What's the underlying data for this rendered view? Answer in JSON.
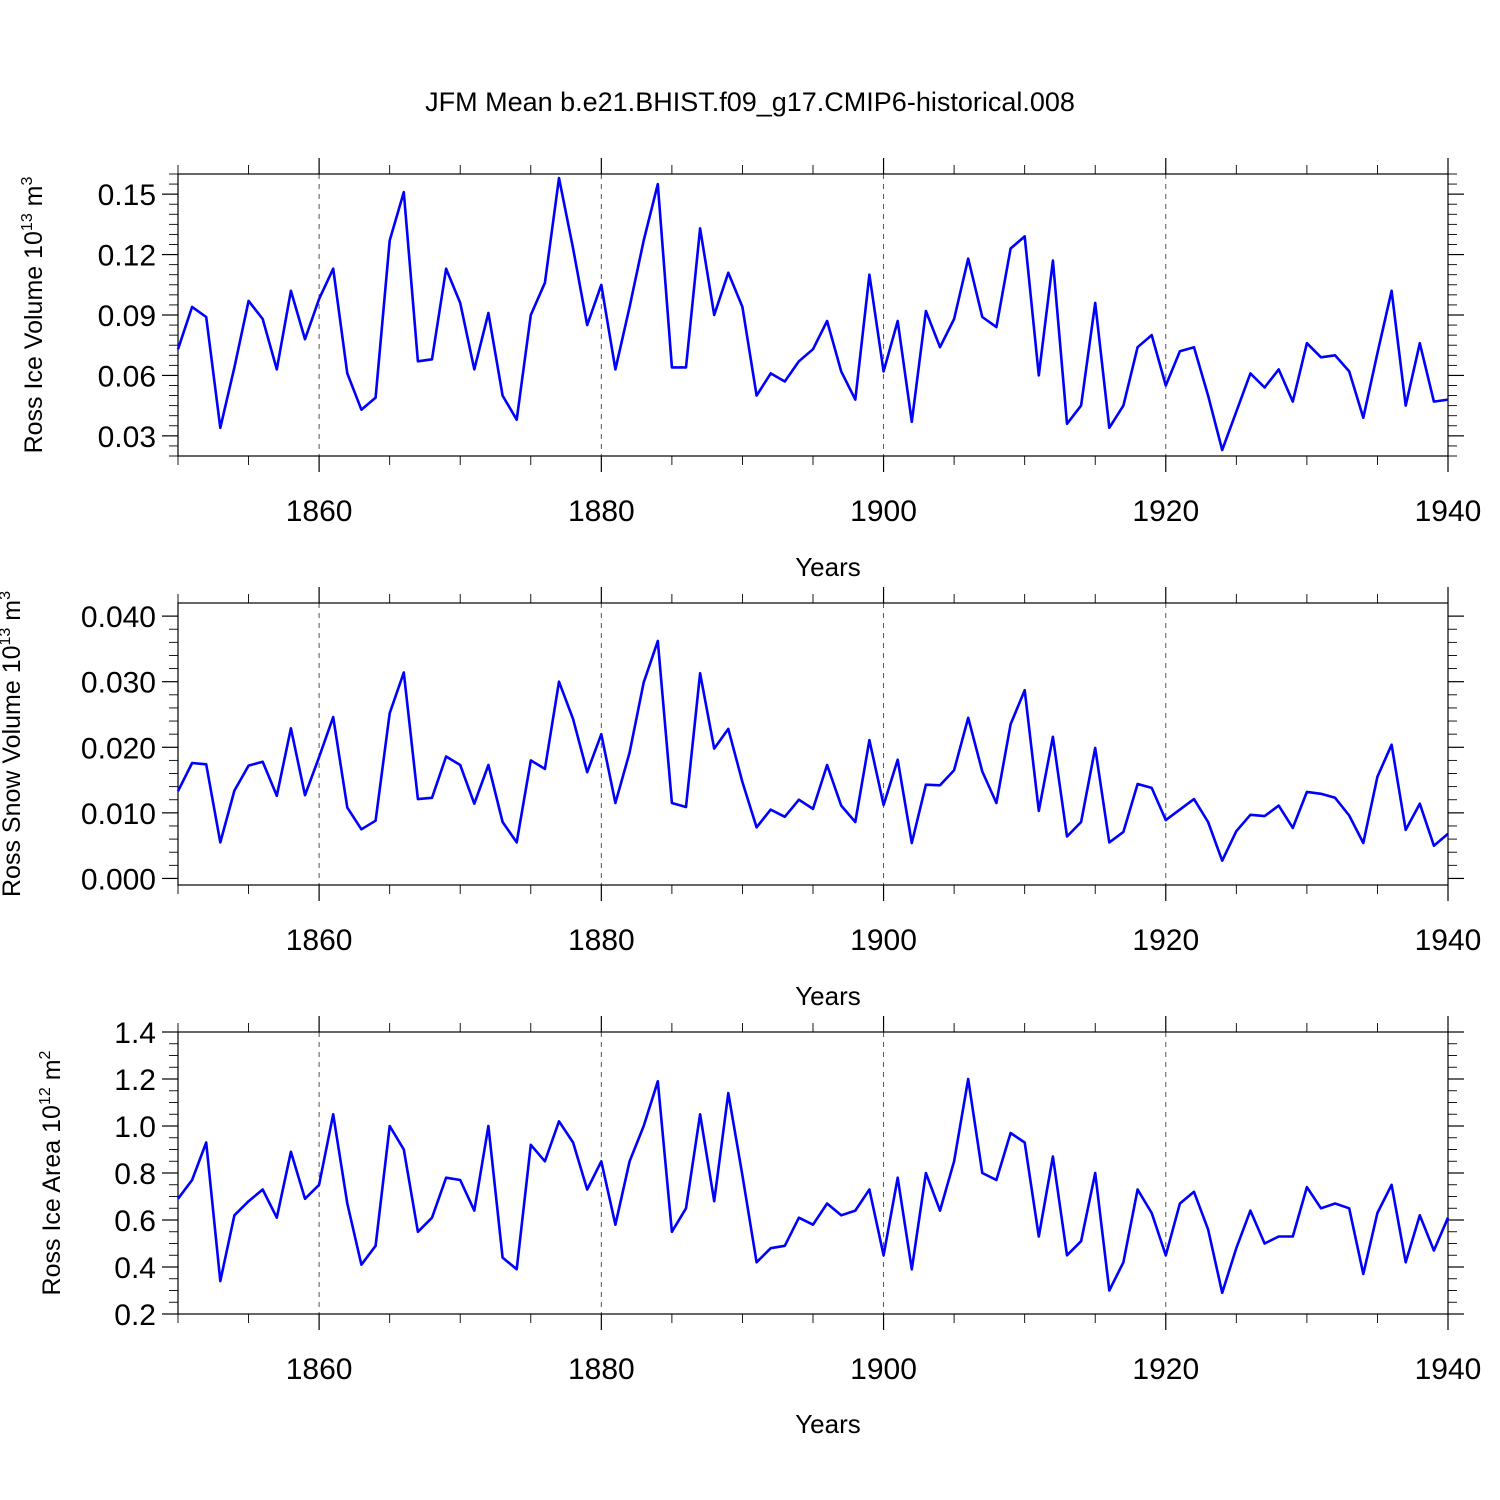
{
  "chart_data": {
    "title": "JFM Mean b.e21.BHIST.f09_g17.CMIP6-historical.008",
    "line_color": "#0000ff",
    "panels": [
      {
        "type": "line",
        "ylabel_main": "Ross Ice Volume 10",
        "ylabel_sup1": "13",
        "ylabel_mid": " m",
        "ylabel_sup2": "3",
        "xlabel": "Years",
        "xlim": [
          1850,
          1940
        ],
        "ylim": [
          0.02,
          0.16
        ],
        "x_ticks": [
          1860,
          1880,
          1900,
          1920,
          1940
        ],
        "x_tick_labels": [
          "1860",
          "1880",
          "1900",
          "1920",
          "1940"
        ],
        "x_minor_ticks": [
          1850,
          1855,
          1865,
          1870,
          1875,
          1885,
          1890,
          1895,
          1905,
          1910,
          1915,
          1925,
          1930,
          1935
        ],
        "y_ticks": [
          0.03,
          0.06,
          0.09,
          0.12,
          0.15
        ],
        "y_tick_labels": [
          "0.03",
          "0.06",
          "0.09",
          "0.12",
          "0.15"
        ],
        "y_minor_ticks": [
          0.02,
          0.025,
          0.035,
          0.04,
          0.045,
          0.05,
          0.055,
          0.065,
          0.07,
          0.075,
          0.08,
          0.085,
          0.095,
          0.1,
          0.105,
          0.11,
          0.115,
          0.125,
          0.13,
          0.135,
          0.14,
          0.145,
          0.155,
          0.16
        ],
        "grid_x": [
          1860,
          1880,
          1900,
          1920
        ],
        "series": [
          {
            "name": "Ross Ice Volume",
            "x_start": 1850,
            "values": [
              0.073,
              0.094,
              0.089,
              0.034,
              0.064,
              0.097,
              0.088,
              0.063,
              0.102,
              0.078,
              0.098,
              0.113,
              0.061,
              0.043,
              0.049,
              0.127,
              0.151,
              0.067,
              0.068,
              0.113,
              0.096,
              0.063,
              0.091,
              0.05,
              0.038,
              0.09,
              0.106,
              0.158,
              0.123,
              0.085,
              0.105,
              0.063,
              0.094,
              0.127,
              0.155,
              0.064,
              0.064,
              0.133,
              0.09,
              0.111,
              0.094,
              0.05,
              0.061,
              0.057,
              0.067,
              0.073,
              0.087,
              0.062,
              0.048,
              0.11,
              0.062,
              0.087,
              0.037,
              0.092,
              0.074,
              0.088,
              0.118,
              0.089,
              0.084,
              0.123,
              0.129,
              0.06,
              0.117,
              0.036,
              0.045,
              0.096,
              0.034,
              0.045,
              0.074,
              0.08,
              0.055,
              0.072,
              0.074,
              0.05,
              0.023,
              0.042,
              0.061,
              0.054,
              0.063,
              0.047,
              0.076,
              0.069,
              0.07,
              0.062,
              0.039,
              0.071,
              0.102,
              0.045,
              0.076,
              0.047,
              0.048
            ]
          }
        ]
      },
      {
        "type": "line",
        "ylabel_main": "Ross Snow Volume 10",
        "ylabel_sup1": "13",
        "ylabel_mid": " m",
        "ylabel_sup2": "3",
        "xlabel": "Years",
        "xlim": [
          1850,
          1940
        ],
        "ylim": [
          -0.001,
          0.042
        ],
        "x_ticks": [
          1860,
          1880,
          1900,
          1920,
          1940
        ],
        "x_tick_labels": [
          "1860",
          "1880",
          "1900",
          "1920",
          "1940"
        ],
        "x_minor_ticks": [
          1850,
          1855,
          1865,
          1870,
          1875,
          1885,
          1890,
          1895,
          1905,
          1910,
          1915,
          1925,
          1930,
          1935
        ],
        "y_ticks": [
          0.0,
          0.01,
          0.02,
          0.03,
          0.04
        ],
        "y_tick_labels": [
          "0.000",
          "0.010",
          "0.020",
          "0.030",
          "0.040"
        ],
        "y_minor_ticks": [
          0.002,
          0.004,
          0.006,
          0.008,
          0.012,
          0.014,
          0.016,
          0.018,
          0.022,
          0.024,
          0.026,
          0.028,
          0.032,
          0.034,
          0.036,
          0.038
        ],
        "grid_x": [
          1860,
          1880,
          1900,
          1920
        ],
        "series": [
          {
            "name": "Ross Snow Volume",
            "x_start": 1850,
            "values": [
              0.0133,
              0.0176,
              0.0174,
              0.0055,
              0.0134,
              0.0172,
              0.0178,
              0.0126,
              0.0229,
              0.0127,
              0.0185,
              0.0246,
              0.0108,
              0.0075,
              0.0088,
              0.0252,
              0.0314,
              0.0121,
              0.0123,
              0.0186,
              0.0173,
              0.0114,
              0.0173,
              0.0086,
              0.0055,
              0.018,
              0.0167,
              0.03,
              0.0243,
              0.0162,
              0.022,
              0.0115,
              0.0192,
              0.0299,
              0.0362,
              0.0115,
              0.0109,
              0.0313,
              0.0198,
              0.0228,
              0.0147,
              0.0078,
              0.0105,
              0.0094,
              0.012,
              0.0106,
              0.0173,
              0.0111,
              0.0086,
              0.0211,
              0.0112,
              0.0181,
              0.0054,
              0.0143,
              0.0142,
              0.0165,
              0.0245,
              0.0163,
              0.0115,
              0.0235,
              0.0287,
              0.0103,
              0.0216,
              0.0064,
              0.0086,
              0.0199,
              0.0055,
              0.0071,
              0.0144,
              0.0138,
              0.0089,
              0.0105,
              0.0121,
              0.0086,
              0.0027,
              0.0072,
              0.0097,
              0.0095,
              0.0111,
              0.0077,
              0.0132,
              0.0129,
              0.0123,
              0.0096,
              0.0054,
              0.0155,
              0.0204,
              0.0074,
              0.0114,
              0.005,
              0.0068
            ]
          }
        ]
      },
      {
        "type": "line",
        "ylabel_main": "Ross Ice Area 10",
        "ylabel_sup1": "12",
        "ylabel_mid": " m",
        "ylabel_sup2": "2",
        "xlabel": "Years",
        "xlim": [
          1850,
          1940
        ],
        "ylim": [
          0.2,
          1.4
        ],
        "x_ticks": [
          1860,
          1880,
          1900,
          1920,
          1940
        ],
        "x_tick_labels": [
          "1860",
          "1880",
          "1900",
          "1920",
          "1940"
        ],
        "x_minor_ticks": [
          1850,
          1855,
          1865,
          1870,
          1875,
          1885,
          1890,
          1895,
          1905,
          1910,
          1915,
          1925,
          1930,
          1935
        ],
        "y_ticks": [
          0.2,
          0.4,
          0.6,
          0.8,
          1.0,
          1.2,
          1.4
        ],
        "y_tick_labels": [
          "0.2",
          "0.4",
          "0.6",
          "0.8",
          "1.0",
          "1.2",
          "1.4"
        ],
        "y_minor_ticks": [
          0.25,
          0.3,
          0.35,
          0.45,
          0.5,
          0.55,
          0.65,
          0.7,
          0.75,
          0.85,
          0.9,
          0.95,
          1.05,
          1.1,
          1.15,
          1.25,
          1.3,
          1.35
        ],
        "grid_x": [
          1860,
          1880,
          1900,
          1920
        ],
        "series": [
          {
            "name": "Ross Ice Area",
            "x_start": 1850,
            "values": [
              0.69,
              0.77,
              0.93,
              0.34,
              0.62,
              0.68,
              0.73,
              0.61,
              0.89,
              0.69,
              0.75,
              1.05,
              0.67,
              0.41,
              0.49,
              1.0,
              0.9,
              0.55,
              0.61,
              0.78,
              0.77,
              0.64,
              1.0,
              0.44,
              0.39,
              0.92,
              0.85,
              1.02,
              0.93,
              0.73,
              0.85,
              0.58,
              0.85,
              1.0,
              1.19,
              0.55,
              0.65,
              1.05,
              0.68,
              1.14,
              0.79,
              0.42,
              0.48,
              0.49,
              0.61,
              0.58,
              0.67,
              0.62,
              0.64,
              0.73,
              0.45,
              0.78,
              0.39,
              0.8,
              0.64,
              0.85,
              1.2,
              0.8,
              0.77,
              0.97,
              0.93,
              0.53,
              0.87,
              0.45,
              0.51,
              0.8,
              0.3,
              0.42,
              0.73,
              0.63,
              0.45,
              0.67,
              0.72,
              0.56,
              0.29,
              0.48,
              0.64,
              0.5,
              0.53,
              0.53,
              0.74,
              0.65,
              0.67,
              0.65,
              0.37,
              0.63,
              0.75,
              0.42,
              0.62,
              0.47,
              0.61
            ]
          }
        ]
      }
    ]
  }
}
